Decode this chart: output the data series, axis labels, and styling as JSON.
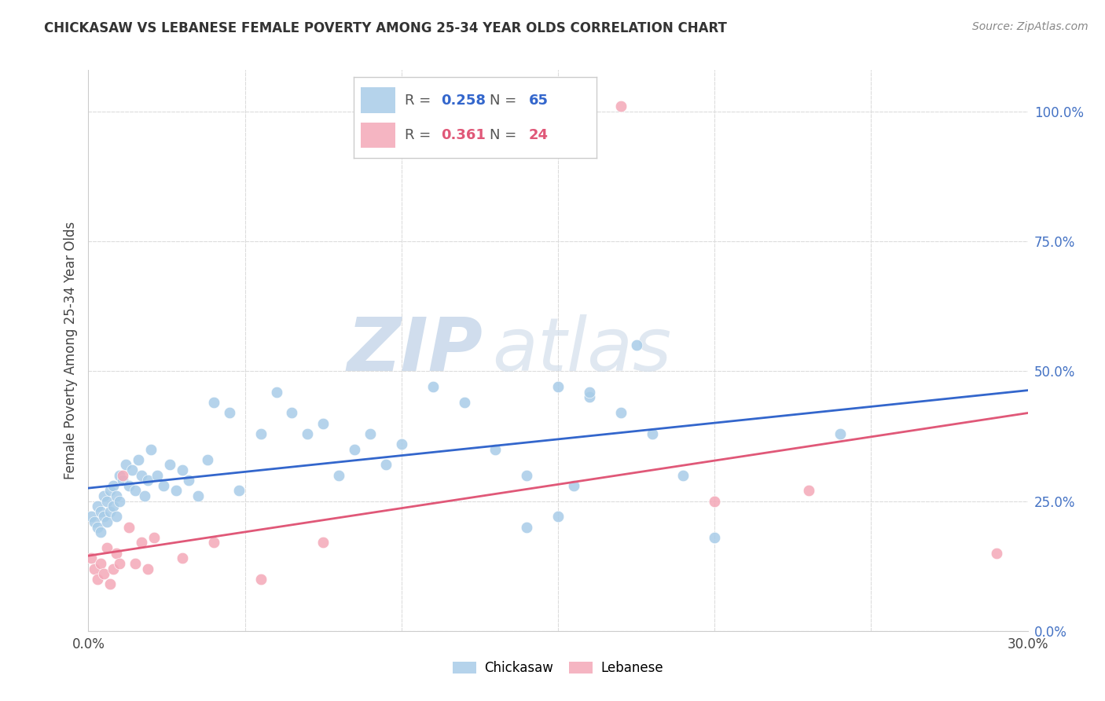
{
  "title": "CHICKASAW VS LEBANESE FEMALE POVERTY AMONG 25-34 YEAR OLDS CORRELATION CHART",
  "source": "Source: ZipAtlas.com",
  "ylabel": "Female Poverty Among 25-34 Year Olds",
  "xlim": [
    0.0,
    0.3
  ],
  "ylim": [
    0.0,
    1.08
  ],
  "xtick_positions": [
    0.0,
    0.05,
    0.1,
    0.15,
    0.2,
    0.25,
    0.3
  ],
  "xtick_labels_show": [
    "0.0%",
    "",
    "",
    "",
    "",
    "",
    "30.0%"
  ],
  "yticks_right": [
    0.0,
    0.25,
    0.5,
    0.75,
    1.0
  ],
  "yticklabels_right": [
    "0.0%",
    "25.0%",
    "50.0%",
    "75.0%",
    "100.0%"
  ],
  "grid_color": "#dddddd",
  "legend_R_chickasaw": "0.258",
  "legend_N_chickasaw": "65",
  "legend_R_lebanese": "0.361",
  "legend_N_lebanese": "24",
  "chickasaw_color": "#a8cce8",
  "lebanese_color": "#f4a8b8",
  "line_chickasaw_color": "#3366cc",
  "line_lebanese_color": "#e05878",
  "watermark_zip": "ZIP",
  "watermark_atlas": "atlas",
  "background_color": "#ffffff",
  "chickasaw_x": [
    0.001,
    0.002,
    0.003,
    0.003,
    0.004,
    0.004,
    0.005,
    0.005,
    0.006,
    0.006,
    0.007,
    0.007,
    0.008,
    0.008,
    0.009,
    0.009,
    0.01,
    0.01,
    0.011,
    0.012,
    0.013,
    0.014,
    0.015,
    0.016,
    0.017,
    0.018,
    0.019,
    0.02,
    0.022,
    0.024,
    0.026,
    0.028,
    0.03,
    0.032,
    0.035,
    0.038,
    0.04,
    0.045,
    0.048,
    0.055,
    0.06,
    0.065,
    0.07,
    0.075,
    0.08,
    0.085,
    0.09,
    0.095,
    0.1,
    0.11,
    0.12,
    0.13,
    0.14,
    0.15,
    0.155,
    0.16,
    0.17,
    0.18,
    0.19,
    0.14,
    0.15,
    0.16,
    0.175,
    0.2,
    0.24
  ],
  "chickasaw_y": [
    0.22,
    0.21,
    0.24,
    0.2,
    0.23,
    0.19,
    0.26,
    0.22,
    0.25,
    0.21,
    0.27,
    0.23,
    0.28,
    0.24,
    0.26,
    0.22,
    0.3,
    0.25,
    0.29,
    0.32,
    0.28,
    0.31,
    0.27,
    0.33,
    0.3,
    0.26,
    0.29,
    0.35,
    0.3,
    0.28,
    0.32,
    0.27,
    0.31,
    0.29,
    0.26,
    0.33,
    0.44,
    0.42,
    0.27,
    0.38,
    0.46,
    0.42,
    0.38,
    0.4,
    0.3,
    0.35,
    0.38,
    0.32,
    0.36,
    0.47,
    0.44,
    0.35,
    0.3,
    0.47,
    0.28,
    0.45,
    0.42,
    0.38,
    0.3,
    0.2,
    0.22,
    0.46,
    0.55,
    0.18,
    0.38
  ],
  "lebanese_x": [
    0.001,
    0.002,
    0.003,
    0.004,
    0.005,
    0.006,
    0.007,
    0.008,
    0.009,
    0.01,
    0.011,
    0.013,
    0.015,
    0.017,
    0.019,
    0.021,
    0.03,
    0.04,
    0.055,
    0.075,
    0.17,
    0.2,
    0.23,
    0.29
  ],
  "lebanese_y": [
    0.14,
    0.12,
    0.1,
    0.13,
    0.11,
    0.16,
    0.09,
    0.12,
    0.15,
    0.13,
    0.3,
    0.2,
    0.13,
    0.17,
    0.12,
    0.18,
    0.14,
    0.17,
    0.1,
    0.17,
    1.01,
    0.25,
    0.27,
    0.15
  ]
}
